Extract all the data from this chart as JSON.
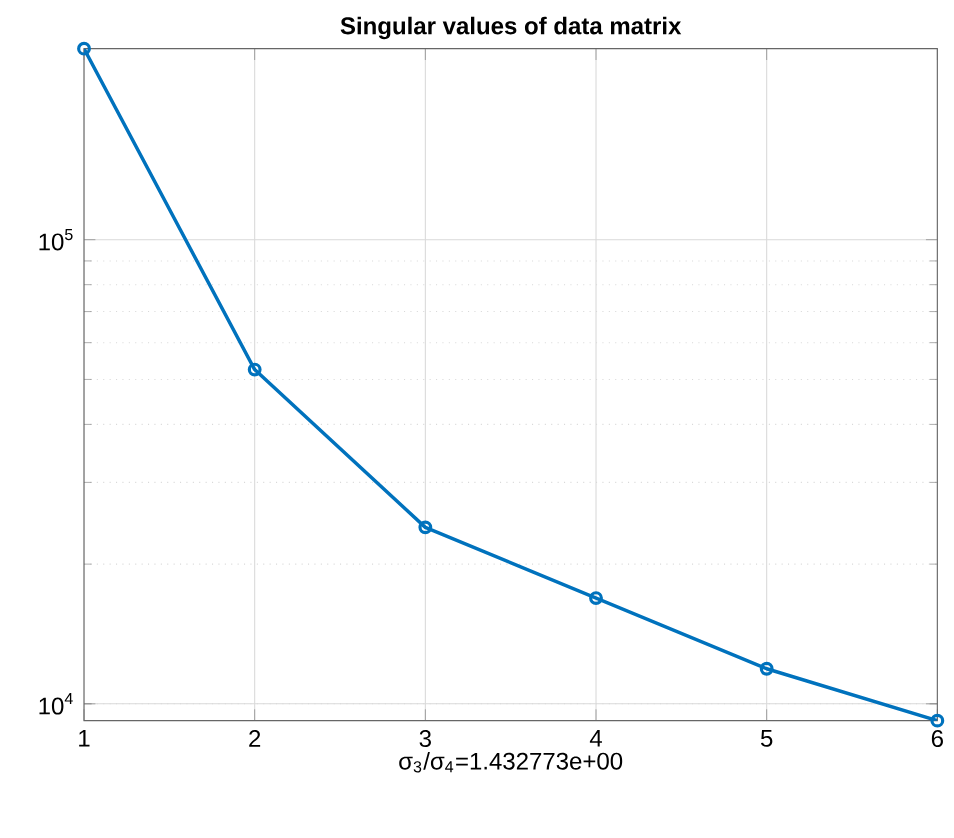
{
  "chart_data": {
    "type": "line",
    "title": "Singular values of data matrix",
    "xlabel": "σ$_{3}$/σ$_{4}$=1.432773e+00",
    "x": [
      1,
      2,
      3,
      4,
      5,
      6
    ],
    "series": [
      {
        "color": "#0072bd",
        "values": [
          258000,
          52500,
          24000,
          16900,
          11900,
          9200
        ]
      }
    ],
    "log": "y",
    "xlim": [
      1,
      6
    ],
    "ylim": [
      9200,
      258000
    ],
    "xticks": [
      1,
      2,
      3,
      4,
      5,
      6
    ],
    "yticks": [
      {
        "value": 10000,
        "label": "10$^{4}$"
      },
      {
        "value": 100000,
        "label": "10$^{5}$"
      }
    ],
    "grid": true,
    "marker": "circle",
    "line_style": "solid"
  }
}
